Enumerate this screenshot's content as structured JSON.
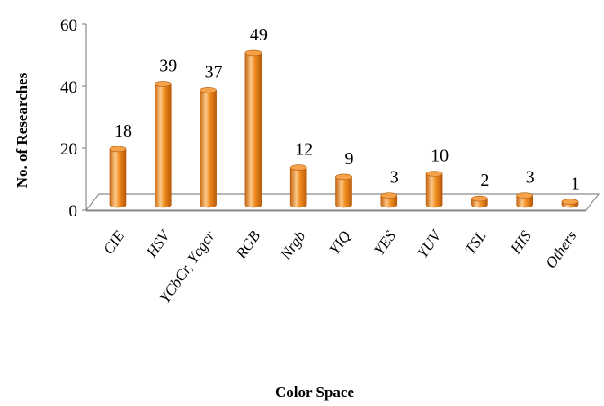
{
  "chart_data": {
    "type": "bar",
    "categories": [
      "CIE",
      "HSV",
      "YCbCr, Ycgcr",
      "RGB",
      "Nrgb",
      "YIQ",
      "YES",
      "YUV",
      "TSL",
      "HIS",
      "Others"
    ],
    "values": [
      18,
      39,
      37,
      49,
      12,
      9,
      3,
      10,
      2,
      3,
      1
    ],
    "xlabel": "Color Space",
    "ylabel": "No. of Researches",
    "yticks": [
      0,
      20,
      40,
      60
    ],
    "ylim": [
      0,
      60
    ],
    "grid": false,
    "legend": "none",
    "bar_color": "#F08C1E",
    "bar_highlight": "#FBC98A",
    "bar_shadow": "#C7650E"
  }
}
